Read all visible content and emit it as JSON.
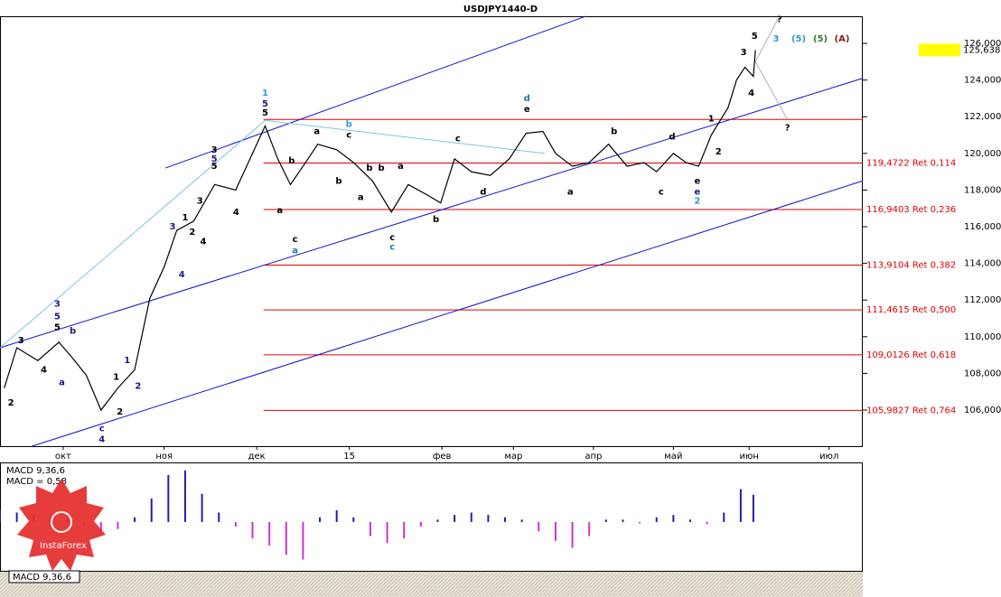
{
  "chart_data": {
    "type": "line",
    "title": "USDJPY1440-D",
    "x": [
      -14,
      -11,
      -6,
      -1,
      2,
      5.5,
      9,
      13,
      17,
      20.6,
      24,
      27,
      31,
      36,
      41,
      44,
      48,
      51,
      54,
      57,
      60.5,
      65,
      69,
      73.5,
      78,
      82,
      86,
      89.7,
      93,
      97,
      101.5,
      106,
      110,
      114,
      117,
      121,
      125,
      129.6,
      134,
      138,
      141,
      145,
      148,
      151,
      154,
      158,
      160,
      162,
      164,
      164.5
    ],
    "series": [
      {
        "color": "#000000",
        "values": [
          107.2,
          109.4,
          108.7,
          109.7,
          108.9,
          107.9,
          106.0,
          107.2,
          108.2,
          112.1,
          113.8,
          115.8,
          116.3,
          118.3,
          118.0,
          119.5,
          121.5,
          119.7,
          118.3,
          119.3,
          120.5,
          120.2,
          119.5,
          118.5,
          116.8,
          118.3,
          117.8,
          117.3,
          119.7,
          119.0,
          118.8,
          119.7,
          121.1,
          121.2,
          120.0,
          119.3,
          119.5,
          120.5,
          119.3,
          119.5,
          119.0,
          120.0,
          119.5,
          119.3,
          121.0,
          122.5,
          124.0,
          124.7,
          124.2,
          125.638
        ]
      }
    ],
    "xlim": [
      -15,
      190
    ],
    "xticks": [
      {
        "value": 0,
        "label": "окт"
      },
      {
        "value": 24,
        "label": "ноя"
      },
      {
        "value": 46,
        "label": "дек"
      },
      {
        "value": 68,
        "label": "15"
      },
      {
        "value": 90,
        "label": "фев"
      },
      {
        "value": 107,
        "label": "мар"
      },
      {
        "value": 126,
        "label": "апр"
      },
      {
        "value": 145,
        "label": "май"
      },
      {
        "value": 163,
        "label": "июн"
      },
      {
        "value": 182,
        "label": "июл"
      }
    ],
    "ylim": [
      104.03,
      127.48
    ],
    "yticks": [
      {
        "value": 106,
        "label": "106,000"
      },
      {
        "value": 108,
        "label": "108,000"
      },
      {
        "value": 110,
        "label": "110,000"
      },
      {
        "value": 112,
        "label": "112,000"
      },
      {
        "value": 114,
        "label": "114,000"
      },
      {
        "value": 116,
        "label": "116,000"
      },
      {
        "value": 118,
        "label": "118,000"
      },
      {
        "value": 120,
        "label": "120,000"
      },
      {
        "value": 122,
        "label": "122,000"
      },
      {
        "value": 124,
        "label": "124,000"
      },
      {
        "value": 126,
        "label": "126,000"
      }
    ],
    "last_price": {
      "value": 125.638,
      "label": "125,638"
    },
    "levels_from_x": 47.6,
    "level_color": "#e00000",
    "levels": [
      {
        "value": 121.85
      },
      {
        "value": 119.4722,
        "label": "119,4722 Ret 0,114"
      },
      {
        "value": 116.9403,
        "label": "116,9403 Ret 0,236"
      },
      {
        "value": 113.9104,
        "label": "113,9104 Ret 0,382"
      },
      {
        "value": 111.4615,
        "label": "111,4615 Ret 0,500"
      },
      {
        "value": 109.0126,
        "label": "109,0126 Ret 0,618"
      },
      {
        "value": 105.9827,
        "label": "105,9827 Ret 0,764"
      }
    ],
    "trendlines": [
      {
        "points": [
          24.3,
          119.2,
          124.2,
          127.48
        ],
        "color": "#1010d0"
      },
      {
        "points": [
          -15,
          109.4,
          190,
          124.1
        ],
        "color": "#1010d0"
      },
      {
        "points": [
          -7.4,
          104.03,
          190,
          118.5
        ],
        "color": "#1010d0"
      },
      {
        "points": [
          -15,
          109.4,
          48,
          121.8
        ],
        "color": "#7fc4e0"
      },
      {
        "points": [
          48,
          121.8,
          114.5,
          120.0
        ],
        "color": "#7fc4e0"
      },
      {
        "points": [
          164.5,
          125.0,
          170.2,
          127.48
        ],
        "color": "#b0b0b0"
      },
      {
        "points": [
          164.5,
          125.0,
          172,
          121.9
        ],
        "color": "#b0b0b0"
      }
    ],
    "waves": [
      {
        "text": "1",
        "x": 48,
        "y": 123.3,
        "color": "#3399cc"
      },
      {
        "text": "5",
        "x": 48,
        "y": 122.7,
        "color": "#1a1a8c"
      },
      {
        "text": "5",
        "x": 48,
        "y": 122.2,
        "color": "#000000"
      },
      {
        "text": "3",
        "x": -1.4,
        "y": 111.8,
        "color": "#1a1a8c"
      },
      {
        "text": "5",
        "x": -1.4,
        "y": 111.1,
        "color": "#1a1a8c"
      },
      {
        "text": "5",
        "x": -1.4,
        "y": 110.5,
        "color": "#000000"
      },
      {
        "text": "b",
        "x": 2.3,
        "y": 110.3,
        "color": "#1a1a8c"
      },
      {
        "text": "a",
        "x": -0.3,
        "y": 107.5,
        "color": "#1a1a8c"
      },
      {
        "text": "3",
        "x": -10,
        "y": 109.8,
        "color": "#000000"
      },
      {
        "text": "4",
        "x": -4.6,
        "y": 108.2,
        "color": "#000000"
      },
      {
        "text": "2",
        "x": -12.4,
        "y": 106.4,
        "color": "#000000"
      },
      {
        "text": "1",
        "x": 12.6,
        "y": 107.8,
        "color": "#000000"
      },
      {
        "text": "2",
        "x": 13.5,
        "y": 105.9,
        "color": "#000000"
      },
      {
        "text": "c",
        "x": 9.2,
        "y": 105.0,
        "color": "#1a1a8c"
      },
      {
        "text": "4",
        "x": 9.2,
        "y": 104.4,
        "color": "#1a1a8c"
      },
      {
        "text": "1",
        "x": 15.2,
        "y": 108.7,
        "color": "#1a1a8c"
      },
      {
        "text": "2",
        "x": 17.8,
        "y": 107.3,
        "color": "#1a1a8c"
      },
      {
        "text": "3",
        "x": 26,
        "y": 116.0,
        "color": "#1a1a8c"
      },
      {
        "text": "4",
        "x": 28.2,
        "y": 113.4,
        "color": "#1a1a8c"
      },
      {
        "text": "1",
        "x": 29,
        "y": 116.5,
        "color": "#000000"
      },
      {
        "text": "2",
        "x": 30.7,
        "y": 115.7,
        "color": "#000000"
      },
      {
        "text": "3",
        "x": 32.5,
        "y": 117.4,
        "color": "#000000"
      },
      {
        "text": "4",
        "x": 33.3,
        "y": 115.2,
        "color": "#000000"
      },
      {
        "text": "3",
        "x": 35.9,
        "y": 120.2,
        "color": "#000000"
      },
      {
        "text": "5",
        "x": 35.9,
        "y": 119.7,
        "color": "#1a1a8c"
      },
      {
        "text": "5",
        "x": 35.9,
        "y": 119.3,
        "color": "#000000"
      },
      {
        "text": "4",
        "x": 41.1,
        "y": 116.8,
        "color": "#000000"
      },
      {
        "text": "a",
        "x": 51.5,
        "y": 116.9,
        "color": "#000000"
      },
      {
        "text": "b",
        "x": 54.3,
        "y": 119.6,
        "color": "#000000"
      },
      {
        "text": "c",
        "x": 55.1,
        "y": 115.3,
        "color": "#000000"
      },
      {
        "text": "a",
        "x": 55.1,
        "y": 114.7,
        "color": "#1f7f9f"
      },
      {
        "text": "a",
        "x": 60.3,
        "y": 121.2,
        "color": "#000000"
      },
      {
        "text": "b",
        "x": 65.5,
        "y": 118.5,
        "color": "#000000"
      },
      {
        "text": "c",
        "x": 67.9,
        "y": 121.0,
        "color": "#000000"
      },
      {
        "text": "b",
        "x": 67.9,
        "y": 121.6,
        "color": "#3399cc"
      },
      {
        "text": "a",
        "x": 70.7,
        "y": 117.6,
        "color": "#000000"
      },
      {
        "text": "b",
        "x": 72.8,
        "y": 119.2,
        "color": "#000000"
      },
      {
        "text": "b",
        "x": 75.6,
        "y": 119.2,
        "color": "#000000"
      },
      {
        "text": "a",
        "x": 80.2,
        "y": 119.3,
        "color": "#000000"
      },
      {
        "text": "b",
        "x": 88.6,
        "y": 116.4,
        "color": "#000000"
      },
      {
        "text": "c",
        "x": 78.2,
        "y": 115.4,
        "color": "#000000"
      },
      {
        "text": "c",
        "x": 78.2,
        "y": 114.9,
        "color": "#1f7f9f"
      },
      {
        "text": "c",
        "x": 93.8,
        "y": 120.8,
        "color": "#000000"
      },
      {
        "text": "d",
        "x": 99.8,
        "y": 117.9,
        "color": "#000000"
      },
      {
        "text": "d",
        "x": 110.2,
        "y": 123.0,
        "color": "#1f7f9f"
      },
      {
        "text": "e",
        "x": 110.2,
        "y": 122.4,
        "color": "#000000"
      },
      {
        "text": "a",
        "x": 120.5,
        "y": 117.9,
        "color": "#000000"
      },
      {
        "text": "b",
        "x": 130.9,
        "y": 121.2,
        "color": "#000000"
      },
      {
        "text": "c",
        "x": 142.1,
        "y": 117.9,
        "color": "#000000"
      },
      {
        "text": "d",
        "x": 144.7,
        "y": 120.9,
        "color": "#000000"
      },
      {
        "text": "e",
        "x": 150.7,
        "y": 118.5,
        "color": "#000000"
      },
      {
        "text": "e",
        "x": 150.7,
        "y": 117.9,
        "color": "#1a1a8c"
      },
      {
        "text": "2",
        "x": 150.7,
        "y": 117.4,
        "color": "#3399cc"
      },
      {
        "text": "1",
        "x": 154,
        "y": 121.9,
        "color": "#000000"
      },
      {
        "text": "2",
        "x": 155.7,
        "y": 120.1,
        "color": "#000000"
      },
      {
        "text": "3",
        "x": 161.7,
        "y": 125.5,
        "color": "#000000"
      },
      {
        "text": "4",
        "x": 163.5,
        "y": 123.3,
        "color": "#000000"
      },
      {
        "text": "5",
        "x": 164.3,
        "y": 126.4,
        "color": "#000000"
      },
      {
        "text": "?",
        "x": 170.2,
        "y": 127.3,
        "color": "#000000"
      },
      {
        "text": "?",
        "x": 172.1,
        "y": 121.4,
        "color": "#000000"
      }
    ],
    "wave_legend": [
      {
        "text": "3",
        "color": "#3399cc"
      },
      {
        "text": "(5)",
        "color": "#3399cc"
      },
      {
        "text": "(5)",
        "color": "#2e7d32"
      },
      {
        "text": "(A)",
        "color": "#8b1a1a"
      }
    ],
    "macd": {
      "title": "MACD 9,36,6",
      "value_text": "MACD = 0,58",
      "ylim": [
        -1.04,
        1.21
      ],
      "colors": {
        "positive": "#2020a8",
        "negative": "#cc33cc"
      },
      "x": [
        -15,
        -11,
        -7,
        -3,
        1,
        5,
        9,
        13,
        17,
        21,
        25,
        29,
        33,
        37,
        41,
        45,
        49,
        53,
        57,
        61,
        65,
        69,
        73,
        77,
        81,
        85,
        89,
        93,
        97,
        101,
        105,
        109,
        113,
        117,
        121,
        125,
        129,
        133,
        137,
        141,
        145,
        149,
        153,
        157,
        161,
        164
      ],
      "values": [
        0.25,
        0.2,
        0.15,
        0.1,
        0.05,
        -0.1,
        -0.25,
        -0.15,
        0.1,
        0.5,
        1.0,
        1.1,
        0.6,
        0.2,
        -0.1,
        -0.35,
        -0.5,
        -0.7,
        -0.8,
        0.1,
        0.25,
        0.1,
        -0.3,
        -0.45,
        -0.35,
        -0.1,
        0.05,
        0.15,
        0.2,
        0.15,
        0.1,
        0.05,
        -0.2,
        -0.4,
        -0.55,
        -0.3,
        0.05,
        0.05,
        -0.03,
        0.1,
        0.15,
        0.05,
        -0.05,
        0.2,
        0.7,
        0.58
      ]
    },
    "tab": "MACD 9,36,6",
    "brand": "InstaForex"
  }
}
